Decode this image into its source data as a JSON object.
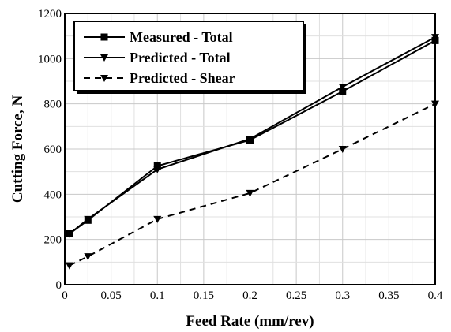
{
  "chart_data": {
    "type": "line",
    "xlabel": "Feed Rate (mm/rev)",
    "ylabel": "Cutting Force, N",
    "xlim": [
      0,
      0.4
    ],
    "ylim": [
      0,
      1200
    ],
    "x_ticks": [
      "0",
      "0.05",
      "0.1",
      "0.15",
      "0.2",
      "0.25",
      "0.3",
      "0.35",
      "0.4"
    ],
    "y_ticks": [
      "0",
      "200",
      "400",
      "600",
      "800",
      "1000",
      "1200"
    ],
    "grid": true,
    "legend_position": "top-left",
    "series": [
      {
        "name": "Measured - Total",
        "marker": "square",
        "line_style": "solid",
        "color": "#000000",
        "x": [
          0.005,
          0.025,
          0.1,
          0.2,
          0.3,
          0.4
        ],
        "y": [
          225,
          285,
          525,
          640,
          855,
          1080
        ]
      },
      {
        "name": "Predicted - Total",
        "marker": "triangle-down",
        "line_style": "solid",
        "color": "#000000",
        "x": [
          0.005,
          0.025,
          0.1,
          0.2,
          0.3,
          0.4
        ],
        "y": [
          225,
          290,
          510,
          645,
          875,
          1095
        ]
      },
      {
        "name": "Predicted - Shear",
        "marker": "triangle-down",
        "line_style": "dashed",
        "color": "#000000",
        "x": [
          0.005,
          0.025,
          0.1,
          0.2,
          0.3,
          0.4
        ],
        "y": [
          85,
          125,
          290,
          405,
          600,
          800
        ]
      }
    ]
  }
}
